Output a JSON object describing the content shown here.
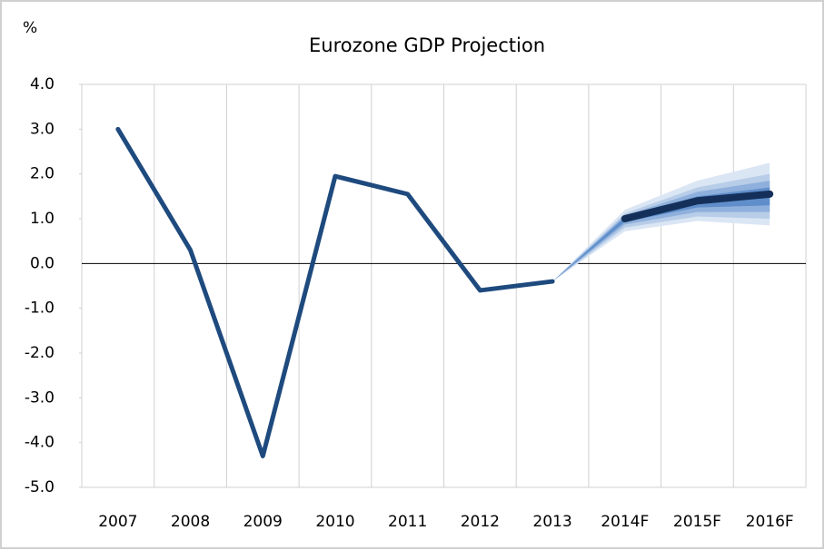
{
  "chart_data": {
    "type": "line",
    "title": "Eurozone GDP Projection",
    "y_label": "%",
    "categories": [
      "2007",
      "2008",
      "2009",
      "2010",
      "2011",
      "2012",
      "2013",
      "2014F",
      "2015F",
      "2016F"
    ],
    "series": [
      {
        "color": "#1e4a7e",
        "values": [
          3.0,
          0.3,
          -4.3,
          1.95,
          1.55,
          -0.6,
          -0.4,
          null,
          null,
          null
        ]
      },
      {
        "color": "#14305a",
        "values": [
          null,
          null,
          null,
          null,
          null,
          null,
          null,
          1.0,
          1.4,
          1.55
        ]
      }
    ],
    "fan": [
      {
        "color": "#dbe6f4",
        "lower": [
          null,
          null,
          null,
          null,
          null,
          null,
          -0.4,
          0.72,
          0.95,
          0.85
        ],
        "upper": [
          null,
          null,
          null,
          null,
          null,
          null,
          -0.4,
          1.2,
          1.85,
          2.25
        ]
      },
      {
        "color": "#b8cde8",
        "lower": [
          null,
          null,
          null,
          null,
          null,
          null,
          -0.4,
          0.8,
          1.05,
          1.0
        ],
        "upper": [
          null,
          null,
          null,
          null,
          null,
          null,
          -0.4,
          1.12,
          1.7,
          2.0
        ]
      },
      {
        "color": "#8fb0dc",
        "lower": [
          null,
          null,
          null,
          null,
          null,
          null,
          -0.4,
          0.87,
          1.15,
          1.15
        ],
        "upper": [
          null,
          null,
          null,
          null,
          null,
          null,
          -0.4,
          1.07,
          1.6,
          1.85
        ]
      },
      {
        "color": "#5f8ecb",
        "lower": [
          null,
          null,
          null,
          null,
          null,
          null,
          -0.4,
          0.93,
          1.25,
          1.3
        ],
        "upper": [
          null,
          null,
          null,
          null,
          null,
          null,
          -0.4,
          1.03,
          1.5,
          1.7
        ]
      }
    ],
    "ylim": [
      -5,
      4
    ],
    "yticks": [
      {
        "value": 4,
        "label": "4.0"
      },
      {
        "value": 3,
        "label": "3.0"
      },
      {
        "value": 2,
        "label": "2.0"
      },
      {
        "value": 1,
        "label": "1.0"
      },
      {
        "value": 0,
        "label": "0.0"
      },
      {
        "value": -1,
        "label": "-1.0"
      },
      {
        "value": -2,
        "label": "-2.0"
      },
      {
        "value": -3,
        "label": "-3.0"
      },
      {
        "value": -4,
        "label": "-4.0"
      },
      {
        "value": -5,
        "label": "-5.0"
      }
    ],
    "grid": "x"
  }
}
